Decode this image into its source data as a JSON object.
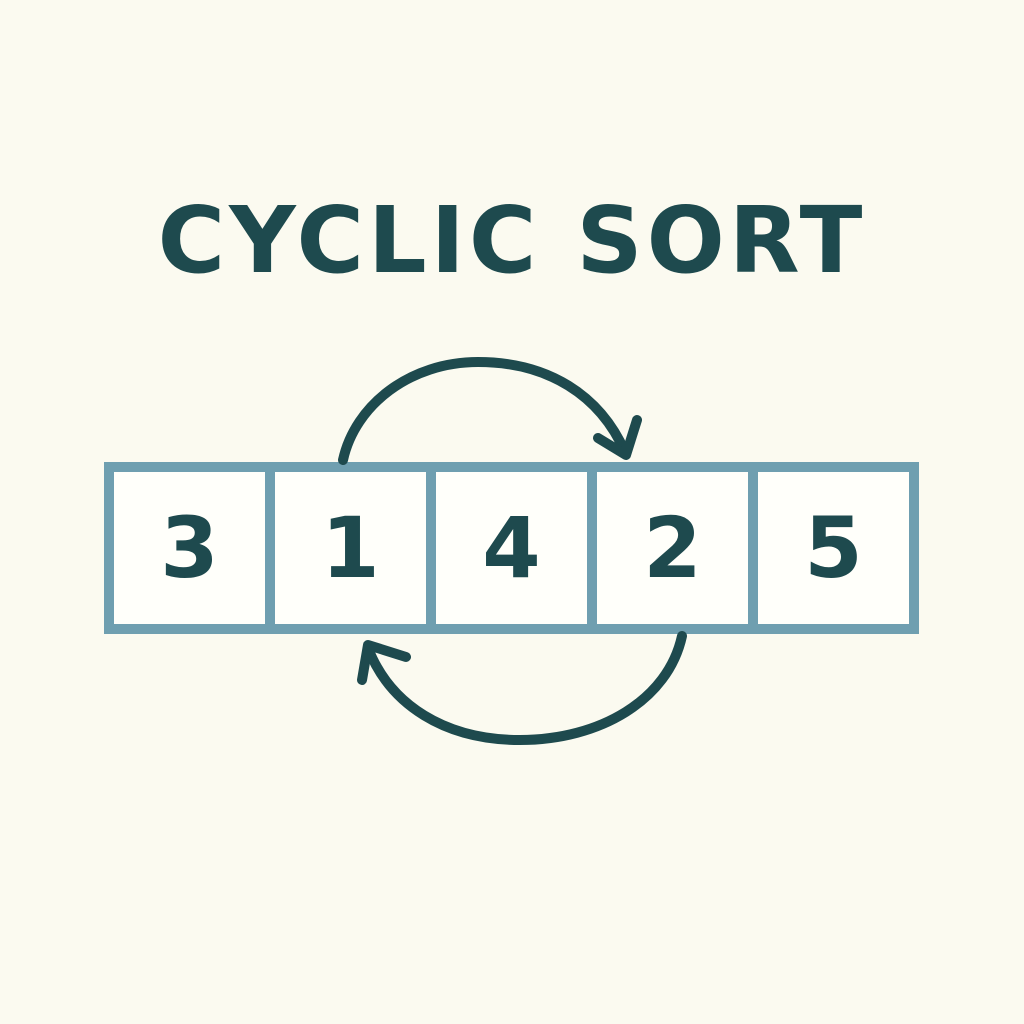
{
  "title": "CYCLIC SORT",
  "array": [
    {
      "value": "3"
    },
    {
      "value": "1"
    },
    {
      "value": "4"
    },
    {
      "value": "2"
    },
    {
      "value": "5"
    }
  ],
  "colors": {
    "background": "#fbfaf0",
    "text": "#1e4a4e",
    "cell_border": "#6f9fb0",
    "cell_fill": "#fffffa",
    "arrow": "#1e4a4e"
  },
  "icons": {
    "top_arrow": "clockwise-arc-arrow-icon",
    "bottom_arrow": "return-arc-arrow-icon"
  }
}
